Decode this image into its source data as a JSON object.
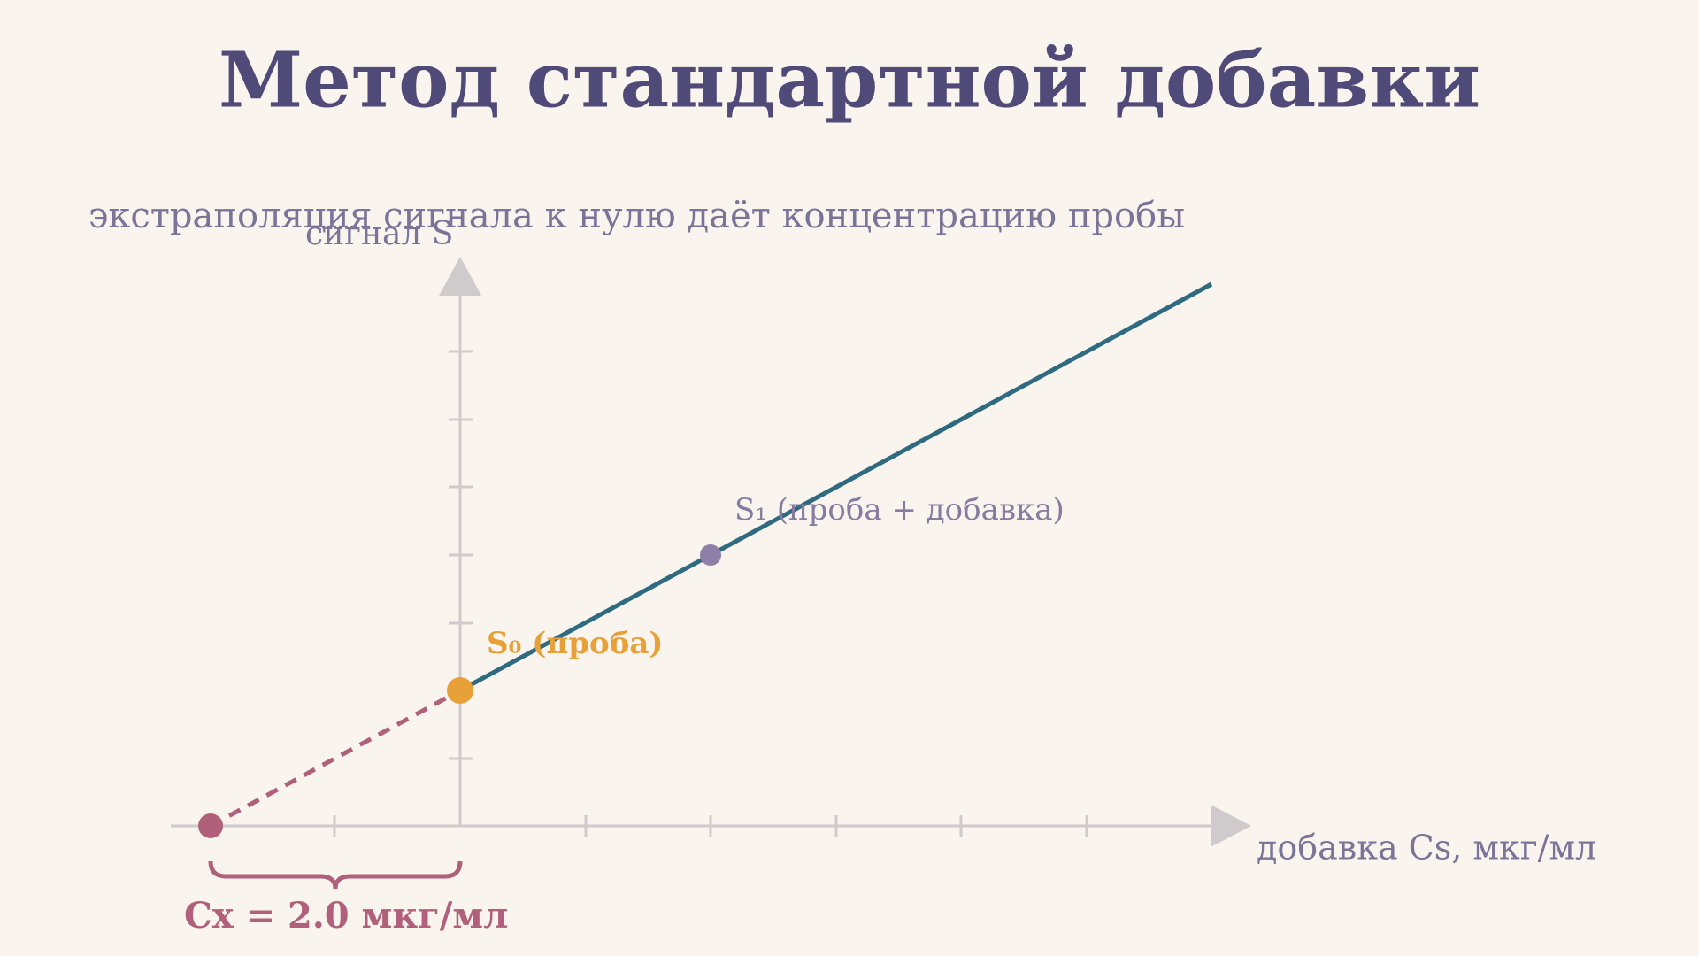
{
  "header": {
    "title": "Метод стандартной добавки",
    "subtitle": "экстраполяция сигнала к нулю даёт концентрацию пробы"
  },
  "axes": {
    "y_label": "сигнал S",
    "x_label": "добавка Cs, мкг/мл"
  },
  "points": {
    "s1_label": "S₁ (проба + добавка)",
    "s0_label": "S₀ (проба)"
  },
  "result": {
    "label": "Cx = 2.0 мкг/мл"
  }
}
